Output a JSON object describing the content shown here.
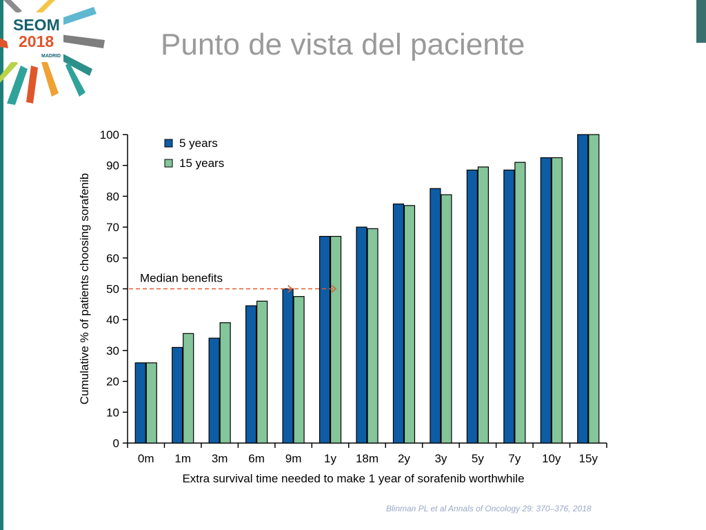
{
  "slide": {
    "title": "Punto de vista del paciente",
    "citation": "Blinman PL et al Annals of Oncology 29: 370–376, 2018"
  },
  "logo": {
    "line1": "SEOM",
    "line2": "2018",
    "line3": "MADRID"
  },
  "colors": {
    "accent_teal": "#1e7f7a",
    "series_5y": "#0e5ca4",
    "series_15y": "#84c59a",
    "annotation": "#e05a2a",
    "title_gray": "#9a9a9a"
  },
  "chart_data": {
    "type": "bar",
    "title": "",
    "xlabel": "Extra survival time needed to make 1 year of sorafenib worthwhile",
    "ylabel": "Cumulative % of patients choosing sorafenib",
    "ylim": [
      0,
      100
    ],
    "yticks": [
      0,
      10,
      20,
      30,
      40,
      50,
      60,
      70,
      80,
      90,
      100
    ],
    "grid": false,
    "legend_position": "top-left",
    "categories": [
      "0m",
      "1m",
      "3m",
      "6m",
      "9m",
      "1y",
      "18m",
      "2y",
      "3y",
      "5y",
      "7y",
      "10y",
      "15y"
    ],
    "series": [
      {
        "name": "5 years",
        "color": "#0e5ca4",
        "values": [
          26,
          31,
          34,
          44.5,
          50,
          67,
          70,
          77.5,
          82.5,
          88.5,
          88.5,
          92.5,
          100
        ]
      },
      {
        "name": "15 years",
        "color": "#84c59a",
        "values": [
          26,
          35.5,
          39,
          46,
          47.5,
          67,
          69.5,
          77,
          80.5,
          89.5,
          91,
          92.5,
          100
        ]
      }
    ],
    "annotation": {
      "text": "Median benefits",
      "y": 50,
      "arrow_targets": [
        "9m",
        "1y"
      ],
      "color": "#e05a2a"
    }
  }
}
